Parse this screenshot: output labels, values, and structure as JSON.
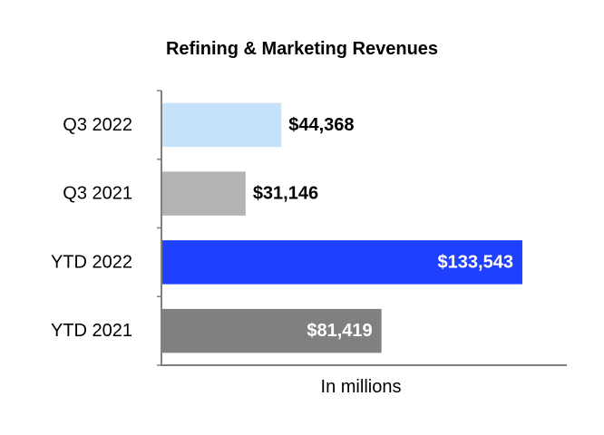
{
  "chart_data": {
    "type": "bar",
    "orientation": "horizontal",
    "title": "Refining & Marketing Revenues",
    "xlabel": "In millions",
    "ylabel": "",
    "xlim": [
      0,
      150000
    ],
    "grid": false,
    "categories": [
      "Q3 2022",
      "Q3 2021",
      "YTD 2022",
      "YTD 2021"
    ],
    "values": [
      44368,
      31146,
      133543,
      81419
    ],
    "value_labels": [
      "$44,368",
      "$31,146",
      "$133,543",
      "$81,419"
    ],
    "value_label_position": [
      "outside",
      "outside",
      "inside",
      "inside"
    ],
    "colors": [
      "#c6e2fb",
      "#b3b3b3",
      "#1f40ff",
      "#808080"
    ],
    "value_label_colors": [
      "#000000",
      "#000000",
      "#ffffff",
      "#ffffff"
    ]
  }
}
